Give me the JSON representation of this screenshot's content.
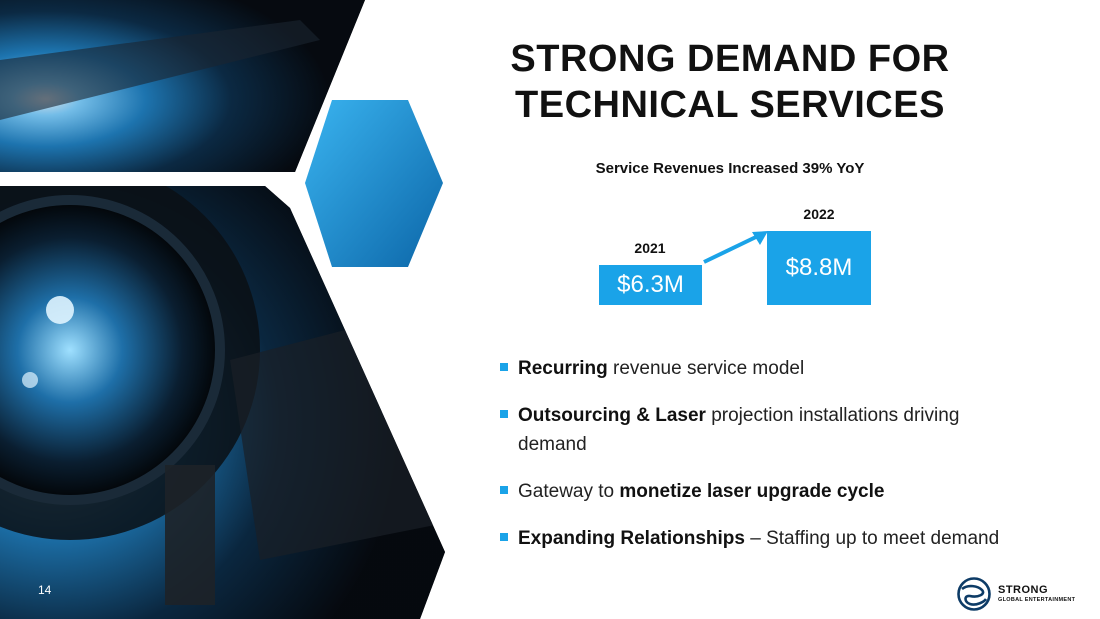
{
  "slide": {
    "title_lines": [
      "STRONG DEMAND FOR",
      "TECHNICAL SERVICES"
    ],
    "page_number": "14"
  },
  "highlight": {
    "headline": "Service Revenues Increased 39% YoY",
    "periods": [
      {
        "year": "2021",
        "value": "$6.3M"
      },
      {
        "year": "2022",
        "value": "$8.8M"
      }
    ]
  },
  "bullets": [
    {
      "bold": "Recurring",
      "text": " revenue service model"
    },
    {
      "bold": "Outsourcing & Laser",
      "text": " projection installations driving demand"
    },
    {
      "prefix": "Gateway to ",
      "bold": "monetize laser upgrade cycle"
    },
    {
      "bold": "Expanding Relationships",
      "text": " – Staffing up to meet demand"
    }
  ],
  "logo": {
    "name": "STRONG",
    "tagline": "GLOBAL ENTERTAINMENT"
  },
  "colors": {
    "accent": "#1aa3e8",
    "text": "#111111",
    "background": "#ffffff"
  }
}
